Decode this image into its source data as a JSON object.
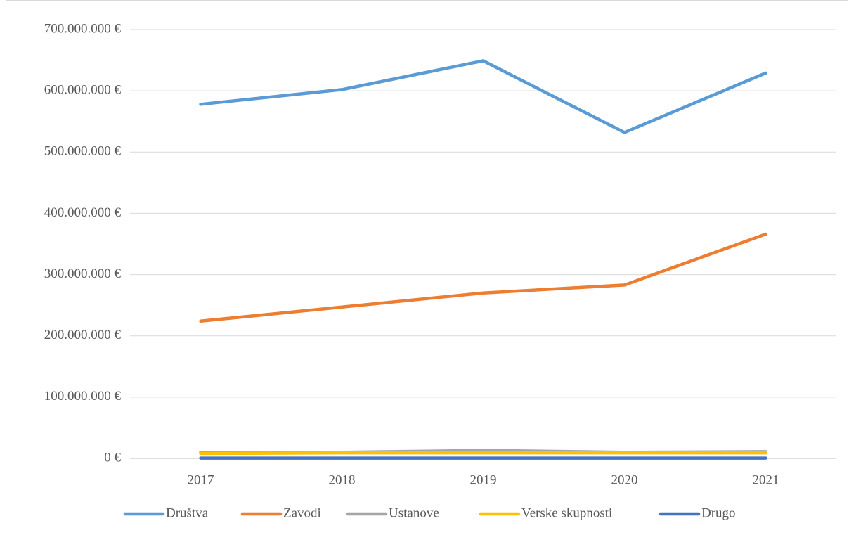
{
  "chart_data": {
    "type": "line",
    "categories": [
      "2017",
      "2018",
      "2019",
      "2020",
      "2021"
    ],
    "series": [
      {
        "name": "Društva",
        "color": "#5b9bd5",
        "values": [
          578000000,
          602000000,
          649000000,
          532000000,
          629000000
        ]
      },
      {
        "name": "Zavodi",
        "color": "#ed7d31",
        "values": [
          224000000,
          247000000,
          270000000,
          283000000,
          366000000
        ]
      },
      {
        "name": "Ustanove",
        "color": "#a5a5a5",
        "values": [
          10000000,
          10000000,
          13000000,
          10000000,
          11000000
        ]
      },
      {
        "name": "Verske skupnosti",
        "color": "#ffc000",
        "values": [
          8000000,
          9000000,
          9000000,
          9000000,
          9000000
        ]
      },
      {
        "name": "Drugo",
        "color": "#4472c4",
        "values": [
          500000,
          500000,
          500000,
          500000,
          500000
        ]
      }
    ],
    "ylim": [
      0,
      700000000
    ],
    "yticks": [
      {
        "value": 0,
        "label": "0 €"
      },
      {
        "value": 100000000,
        "label": "100.000.000 €"
      },
      {
        "value": 200000000,
        "label": "200.000.000 €"
      },
      {
        "value": 300000000,
        "label": "300.000.000 €"
      },
      {
        "value": 400000000,
        "label": "400.000.000 €"
      },
      {
        "value": 500000000,
        "label": "500.000.000 €"
      },
      {
        "value": 600000000,
        "label": "600.000.000 €"
      },
      {
        "value": 700000000,
        "label": "700.000.000 €"
      }
    ],
    "grid": true,
    "legend": "bottom"
  }
}
